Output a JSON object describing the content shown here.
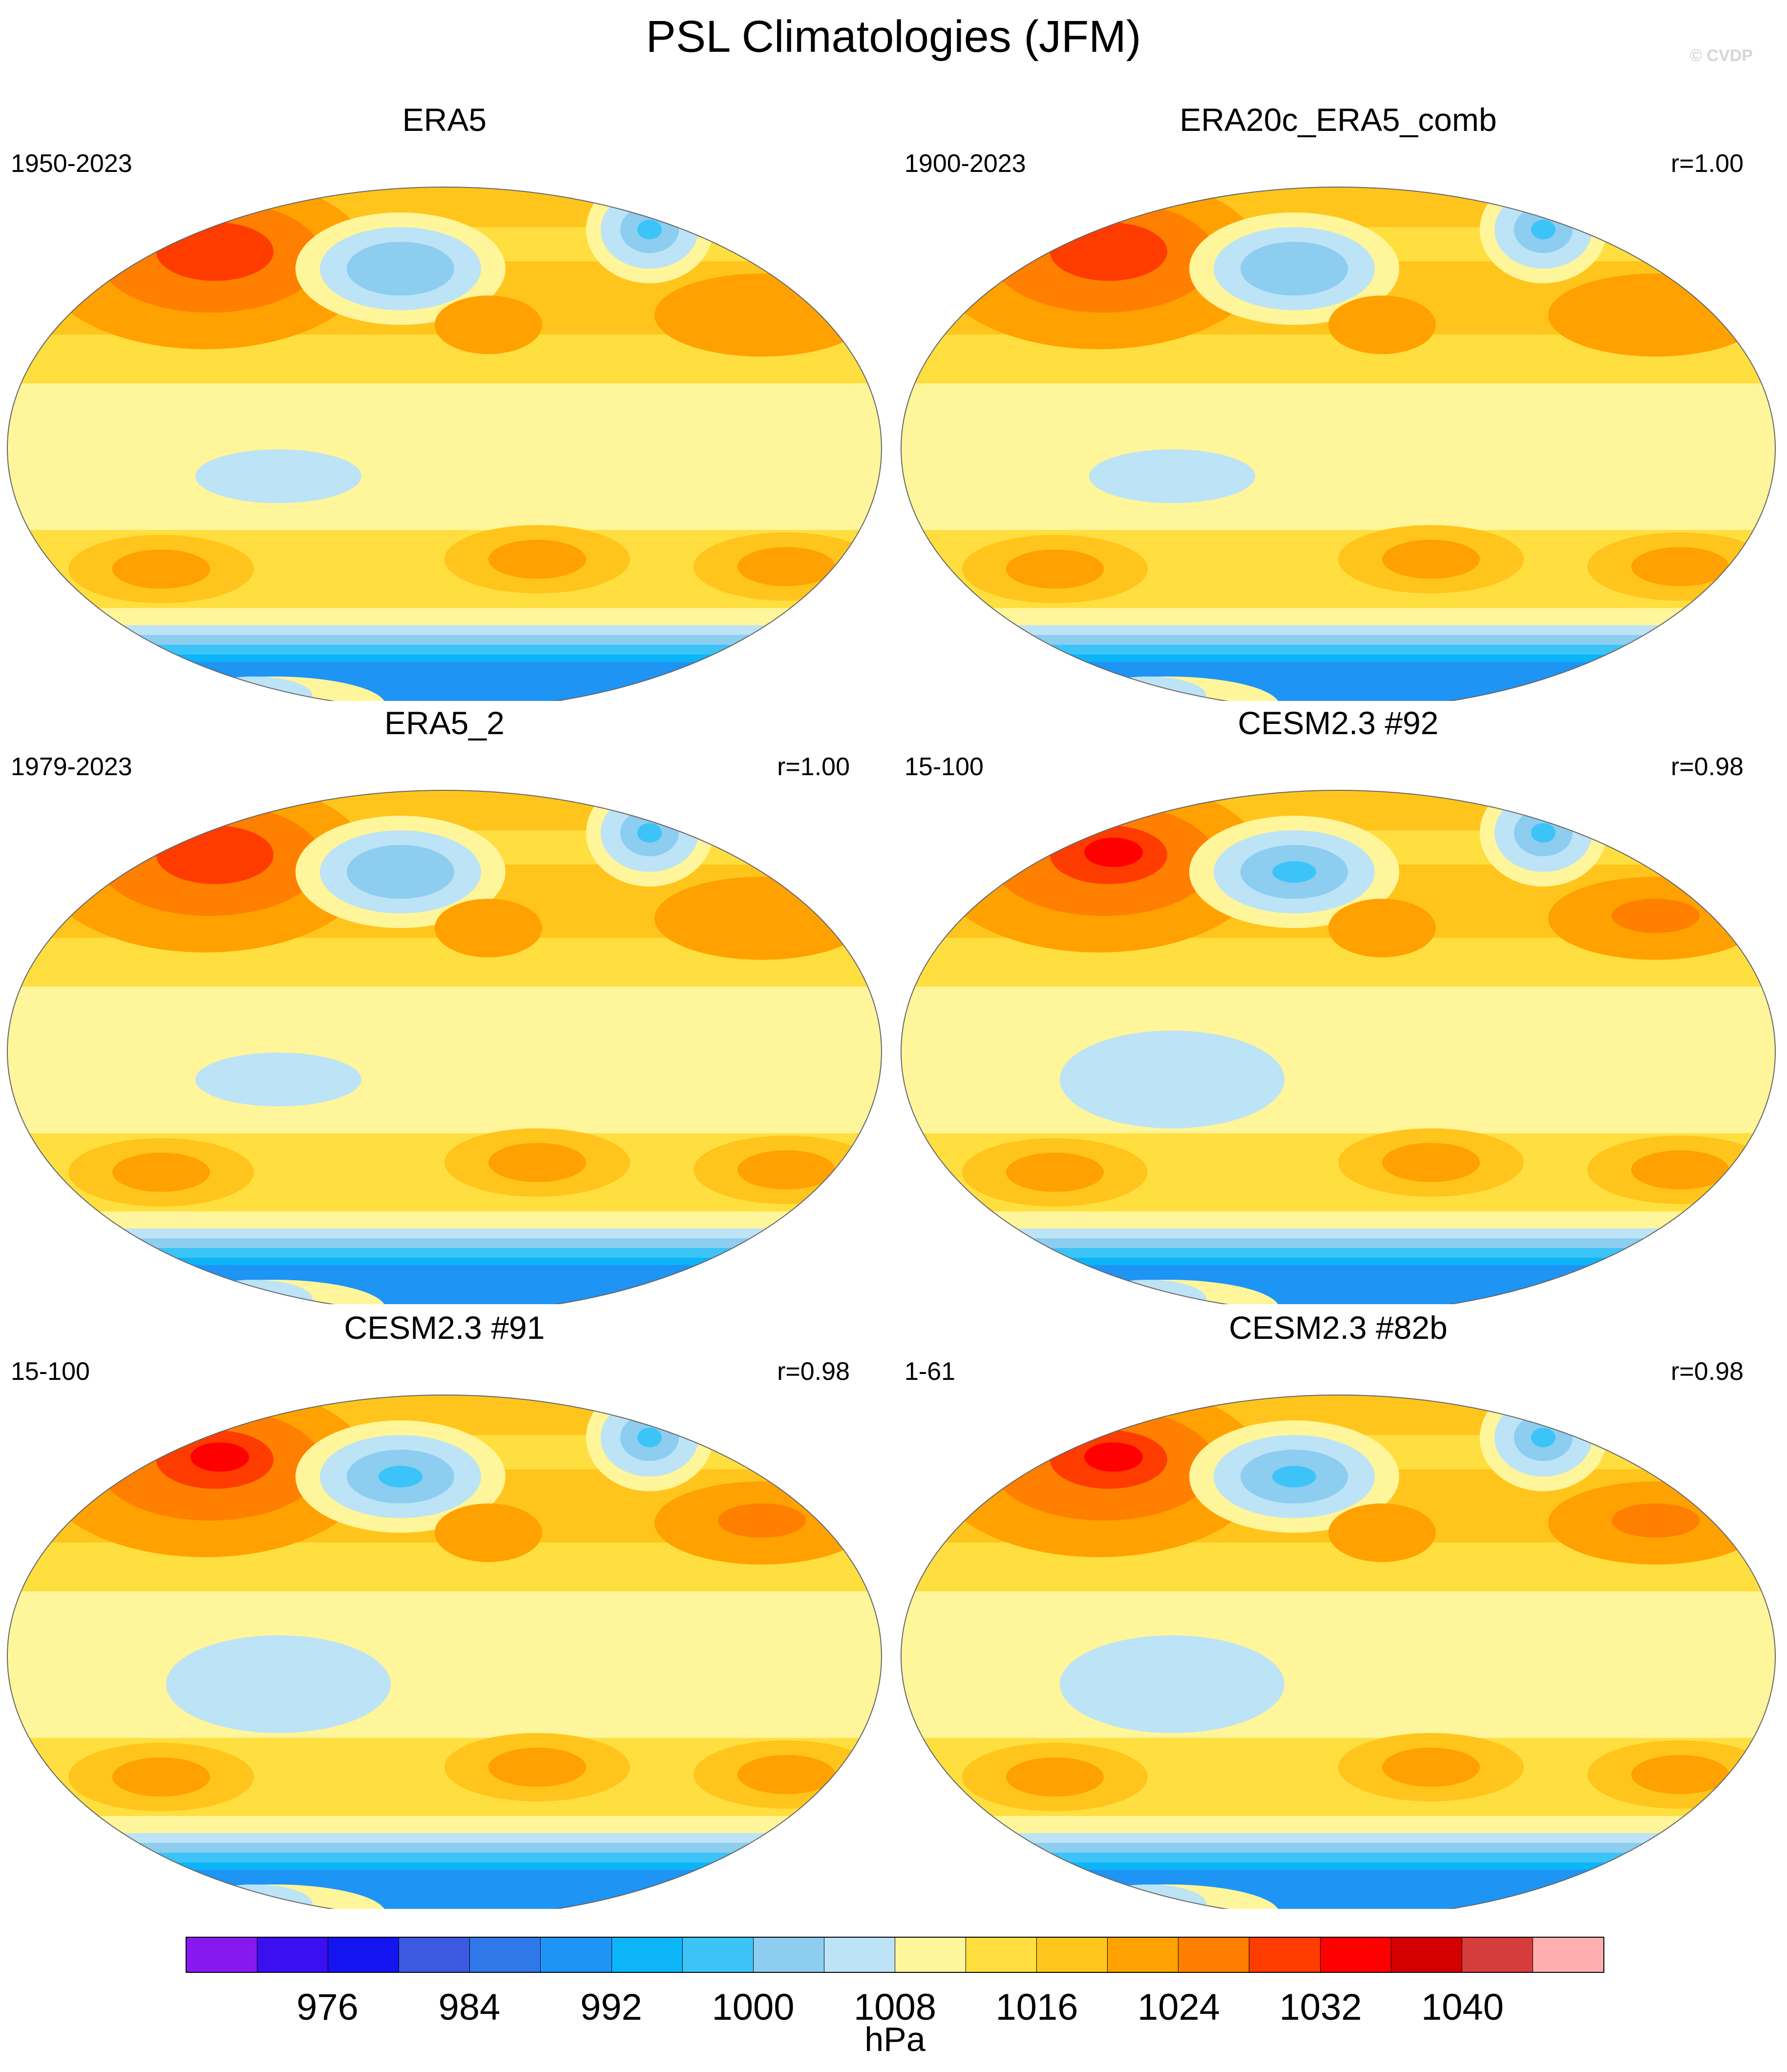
{
  "title": "PSL Climatologies (JFM)",
  "watermark": "© CVDP",
  "colorbar": {
    "unit": "hPa",
    "colors": [
      "#8719f0",
      "#3a0ff0",
      "#1414f0",
      "#3b5ae0",
      "#2e78ea",
      "#1e94f5",
      "#0cb4f8",
      "#3cc4f8",
      "#8ccdf0",
      "#bde3f6",
      "#fff59a",
      "#ffdf40",
      "#ffc51c",
      "#ffa100",
      "#ff7f00",
      "#ff3c00",
      "#ff0000",
      "#d20000",
      "#d73c3c",
      "#ffafaf"
    ],
    "boundaries": [
      972,
      976,
      980,
      984,
      988,
      992,
      996,
      1000,
      1004,
      1008,
      1012,
      1016,
      1020,
      1024,
      1028,
      1032,
      1036,
      1040,
      1044
    ],
    "tick_labels": [
      {
        "text": "976",
        "boundary_index": 1
      },
      {
        "text": "984",
        "boundary_index": 3
      },
      {
        "text": "992",
        "boundary_index": 5
      },
      {
        "text": "1000",
        "boundary_index": 7
      },
      {
        "text": "1008",
        "boundary_index": 9
      },
      {
        "text": "1016",
        "boundary_index": 11
      },
      {
        "text": "1024",
        "boundary_index": 13
      },
      {
        "text": "1032",
        "boundary_index": 15
      },
      {
        "text": "1040",
        "boundary_index": 17
      }
    ]
  },
  "chart_data": [
    {
      "type": "heatmap",
      "title": "ERA5",
      "period": "1950-2023",
      "pattern_correlation": ""
    },
    {
      "type": "heatmap",
      "title": "ERA20c_ERA5_comb",
      "period": "1900-2023",
      "pattern_correlation": "r=1.00"
    },
    {
      "type": "heatmap",
      "title": "ERA5_2",
      "period": "1979-2023",
      "pattern_correlation": "r=1.00"
    },
    {
      "type": "heatmap",
      "title": "CESM2.3 #92",
      "period": "15-100",
      "pattern_correlation": "r=0.98"
    },
    {
      "type": "heatmap",
      "title": "CESM2.3 #91",
      "period": "15-100",
      "pattern_correlation": "r=0.98"
    },
    {
      "type": "heatmap",
      "title": "CESM2.3 #82b",
      "period": "1-61",
      "pattern_correlation": "r=0.98"
    }
  ]
}
